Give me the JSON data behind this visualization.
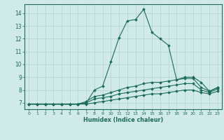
{
  "xlabel": "Humidex (Indice chaleur)",
  "ylabel": "",
  "background_color": "#d0eaea",
  "grid_color": "#b8d4d4",
  "line_color": "#1a6b5a",
  "xlim": [
    -0.5,
    23.5
  ],
  "ylim": [
    6.5,
    14.7
  ],
  "xticks": [
    0,
    1,
    2,
    3,
    4,
    5,
    6,
    7,
    8,
    9,
    10,
    11,
    12,
    13,
    14,
    15,
    16,
    17,
    18,
    19,
    20,
    21,
    22,
    23
  ],
  "yticks": [
    7,
    8,
    9,
    10,
    11,
    12,
    13,
    14
  ],
  "series": [
    [
      6.9,
      6.9,
      6.9,
      6.9,
      6.9,
      6.9,
      6.9,
      7.0,
      8.0,
      8.3,
      10.2,
      12.1,
      13.4,
      13.5,
      14.3,
      12.5,
      12.0,
      11.5,
      8.8,
      9.0,
      9.0,
      8.6,
      7.9,
      8.2
    ],
    [
      6.9,
      6.9,
      6.9,
      6.9,
      6.9,
      6.9,
      6.9,
      7.1,
      7.5,
      7.6,
      7.8,
      8.0,
      8.2,
      8.3,
      8.5,
      8.6,
      8.6,
      8.7,
      8.8,
      8.9,
      8.9,
      8.2,
      7.9,
      8.2
    ],
    [
      6.9,
      6.9,
      6.9,
      6.9,
      6.9,
      6.9,
      6.9,
      7.0,
      7.3,
      7.4,
      7.5,
      7.7,
      7.8,
      7.9,
      8.0,
      8.1,
      8.2,
      8.3,
      8.4,
      8.5,
      8.5,
      8.0,
      7.8,
      8.1
    ],
    [
      6.9,
      6.9,
      6.9,
      6.9,
      6.9,
      6.9,
      6.9,
      6.9,
      7.0,
      7.1,
      7.2,
      7.3,
      7.4,
      7.5,
      7.6,
      7.7,
      7.7,
      7.8,
      7.9,
      8.0,
      8.0,
      7.8,
      7.7,
      7.9
    ]
  ]
}
